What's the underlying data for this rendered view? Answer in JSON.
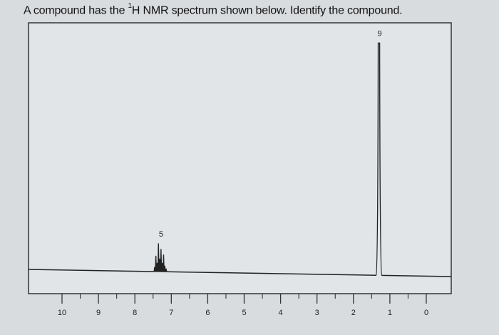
{
  "question": {
    "prefix": "A compound has the ",
    "superscript": "1",
    "suffix": "H NMR spectrum shown below. Identify the compound."
  },
  "chart_data": {
    "type": "line",
    "title": "",
    "xlabel": "",
    "ylabel": "",
    "xlim": [
      10,
      0
    ],
    "x_direction": "decreasing",
    "x_ticks": [
      "10",
      "9",
      "8",
      "7",
      "6",
      "5",
      "4",
      "3",
      "2",
      "1",
      "0"
    ],
    "grid": false,
    "peaks": [
      {
        "ppm": 7.3,
        "integration": "5",
        "relative_height": 0.12,
        "multiplet": true
      },
      {
        "ppm": 1.3,
        "integration": "9",
        "relative_height": 1.0,
        "multiplet": false
      }
    ],
    "colors": {
      "trace": "#222222",
      "frame": "#333333",
      "background": "#e2e5e8"
    }
  }
}
